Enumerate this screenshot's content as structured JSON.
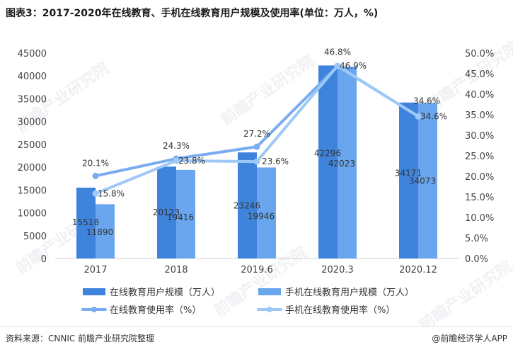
{
  "title": "图表3：2017-2020年在线教育、手机在线教育用户规模及使用率(单位：万人，%)",
  "footer": {
    "source": "资料来源：CNNIC 前瞻产业研究院整理",
    "brand": "@前瞻经济学人APP"
  },
  "watermark": "前瞻产业研究院",
  "colors": {
    "bar1": "#3f84dc",
    "bar2": "#6aa6ee",
    "line1": "#7aacf0",
    "line2": "#9ec8f7"
  },
  "chart_data": {
    "type": "bar",
    "categories": [
      "2017",
      "2018",
      "2019.6",
      "2020.3",
      "2020.12"
    ],
    "ylim_left": [
      0,
      45000
    ],
    "yticks_left": [
      "0",
      "5000",
      "10000",
      "15000",
      "20000",
      "25000",
      "30000",
      "35000",
      "40000",
      "45000"
    ],
    "ylim_right": [
      0,
      50
    ],
    "yticks_right": [
      "0.0%",
      "5.0%",
      "10.0%",
      "15.0%",
      "20.0%",
      "25.0%",
      "30.0%",
      "35.0%",
      "40.0%",
      "45.0%",
      "50.0%"
    ],
    "series": [
      {
        "name": "在线教育用户规模（万人）",
        "kind": "bar",
        "values": [
          15518,
          20123,
          23246,
          42296,
          34171
        ],
        "labels": [
          "15518",
          "20123",
          "23246",
          "42296",
          "34171"
        ]
      },
      {
        "name": "手机在线教育用户规模（万人）",
        "kind": "bar",
        "values": [
          11890,
          19416,
          19946,
          42023,
          34073
        ],
        "labels": [
          "11890",
          "19416",
          "19946",
          "42023",
          "34073"
        ]
      },
      {
        "name": "在线教育使用率（%）",
        "kind": "line",
        "values": [
          20.1,
          24.3,
          27.2,
          46.8,
          34.6
        ],
        "labels": [
          "20.1%",
          "24.3%",
          "27.2%",
          "46.8%",
          "34.6%"
        ]
      },
      {
        "name": "手机在线教育使用率（%）",
        "kind": "line",
        "values": [
          15.8,
          23.8,
          23.6,
          46.9,
          34.6
        ],
        "labels": [
          "15.8%",
          "23.8%",
          "23.6%",
          "46.9%",
          "34.6%"
        ]
      }
    ],
    "grid": false,
    "legend_position": "bottom"
  }
}
